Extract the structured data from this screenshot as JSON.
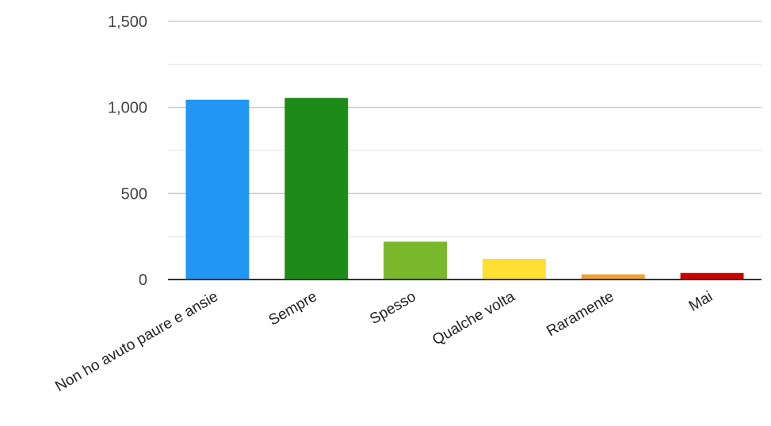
{
  "chart_data": {
    "type": "bar",
    "title": "",
    "xlabel": "",
    "ylabel": "",
    "categories": [
      "Non ho avuto paure e ansie",
      "Sempre",
      "Spesso",
      "Qualche volta",
      "Raramente",
      "Mai"
    ],
    "values": [
      1045,
      1055,
      220,
      120,
      30,
      38
    ],
    "colors": [
      "#2196f3",
      "#1e8a18",
      "#78b82a",
      "#fde031",
      "#f4a032",
      "#cc0000"
    ],
    "ylim": [
      0,
      1500
    ],
    "y_ticks": [
      {
        "value": 0,
        "label": "0"
      },
      {
        "value": 500,
        "label": "500"
      },
      {
        "value": 1000,
        "label": "1,000"
      },
      {
        "value": 1500,
        "label": "1,500"
      }
    ],
    "grid": true,
    "minor_grid": true,
    "legend": "none"
  }
}
